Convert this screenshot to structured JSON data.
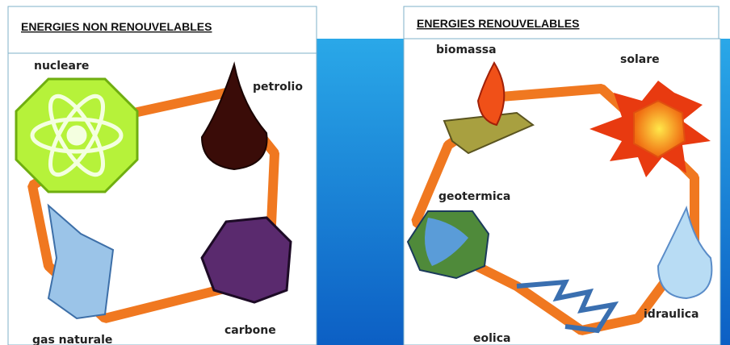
{
  "panels": [
    {
      "title": "ENERGIES NON RENOUVELABLES",
      "items": [
        "nucleare",
        "petrolio",
        "carbone",
        "gas naturale"
      ]
    },
    {
      "title": "ENERGIES RENOUVELABLES",
      "items": [
        "biomassa",
        "solare",
        "geotermica",
        "idraulica",
        "eolica"
      ]
    }
  ]
}
